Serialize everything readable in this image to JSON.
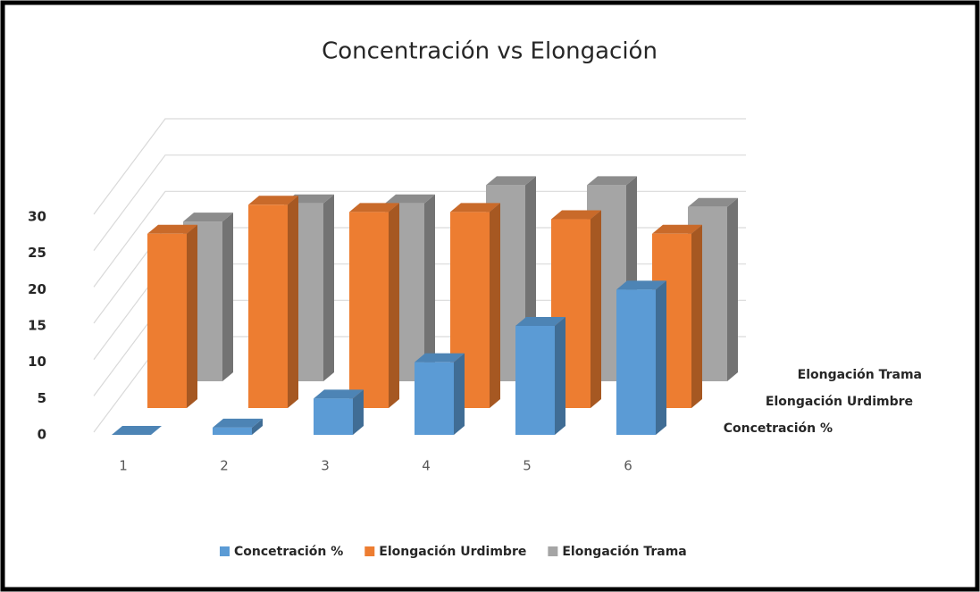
{
  "chart_data": {
    "type": "bar3d",
    "title": "Concentración vs Elongación",
    "categories": [
      "1",
      "2",
      "3",
      "4",
      "5",
      "6"
    ],
    "series": [
      {
        "name": "Concetración %",
        "color": "#5b9bd5",
        "values": [
          0,
          1,
          5,
          10,
          15,
          20
        ]
      },
      {
        "name": "Elongación Urdimbre",
        "color": "#ed7d31",
        "values": [
          24,
          28,
          27,
          27,
          26,
          24
        ]
      },
      {
        "name": "Elongación Trama",
        "color": "#a5a5a5",
        "values": [
          22,
          24.5,
          24.5,
          27,
          27,
          24
        ]
      }
    ],
    "ylim": [
      0,
      30
    ],
    "yticks": [
      0,
      5,
      10,
      15,
      20,
      25,
      30
    ],
    "grid": true,
    "legend": "bottom"
  }
}
